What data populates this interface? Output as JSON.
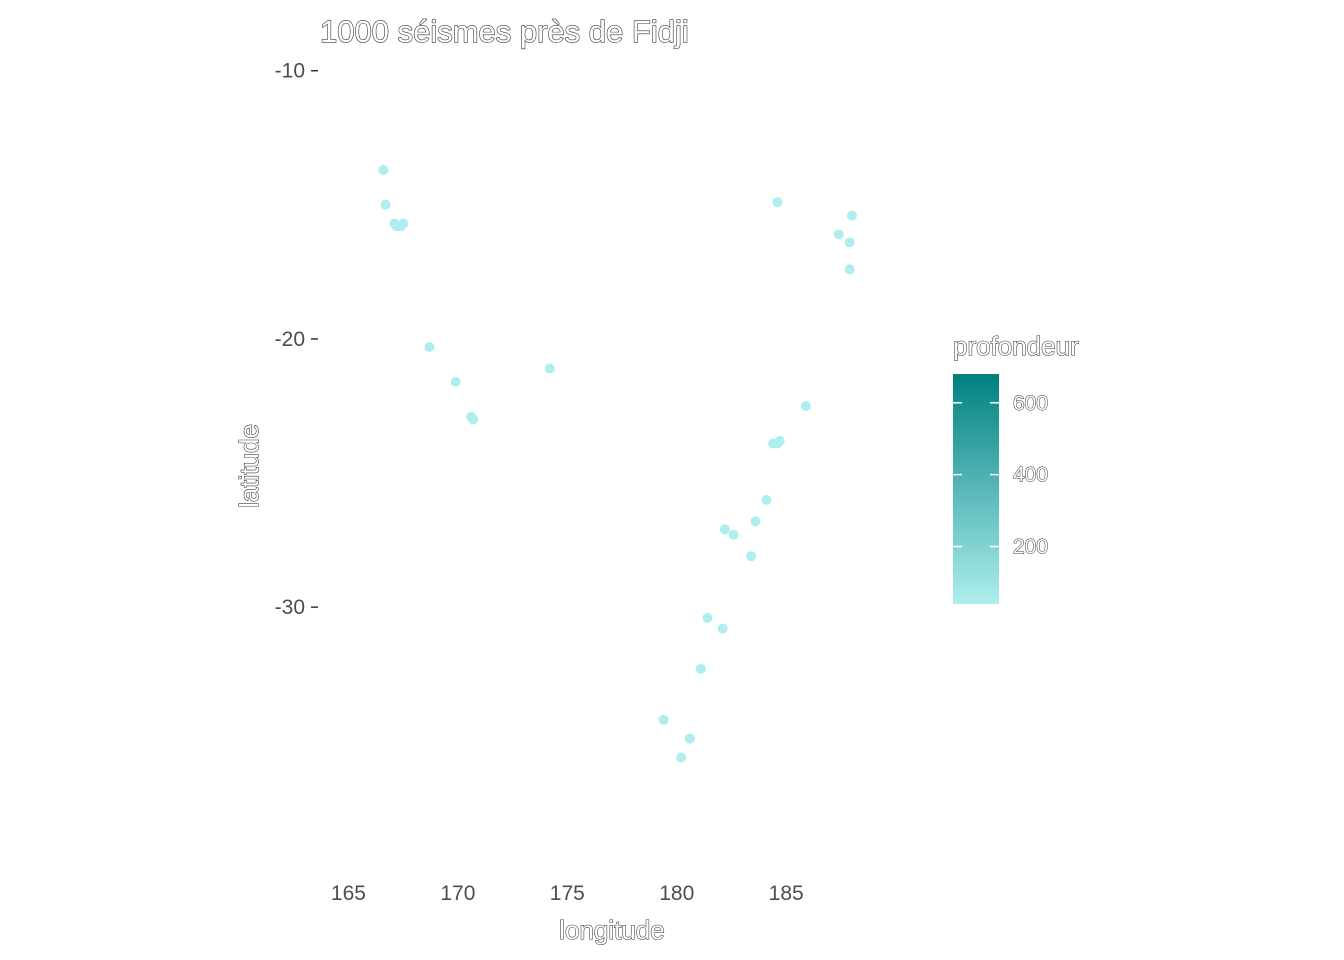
{
  "chart_data": {
    "type": "scatter",
    "title": "1000 séismes près de Fidji",
    "xlabel": "longitude",
    "ylabel": "latitude",
    "xlim": [
      163.7,
      190.2
    ],
    "ylim": [
      -39.8,
      -9.6
    ],
    "xticks": [
      "165",
      "170",
      "175",
      "180",
      "185"
    ],
    "xtick_values": [
      165,
      170,
      175,
      180,
      185
    ],
    "yticks": [
      "-10",
      "-20",
      "-30"
    ],
    "ytick_values": [
      -10,
      -20,
      -30
    ],
    "grid": false,
    "legend": {
      "title": "profondeur",
      "position": "right",
      "type": "colorbar",
      "range": [
        40,
        680
      ],
      "ticks": [
        "200",
        "400",
        "600"
      ],
      "tick_values": [
        200,
        400,
        600
      ],
      "color_low": "#aeeeee",
      "color_high": "#008080"
    },
    "point_color": "#aeeeee",
    "points": [
      {
        "x": 166.6,
        "y": -13.7
      },
      {
        "x": 166.7,
        "y": -15.0
      },
      {
        "x": 167.1,
        "y": -15.7
      },
      {
        "x": 167.2,
        "y": -15.8
      },
      {
        "x": 167.4,
        "y": -15.8
      },
      {
        "x": 167.5,
        "y": -15.7
      },
      {
        "x": 168.7,
        "y": -20.3
      },
      {
        "x": 169.9,
        "y": -21.6
      },
      {
        "x": 170.6,
        "y": -22.9
      },
      {
        "x": 170.7,
        "y": -23.0
      },
      {
        "x": 174.2,
        "y": -21.1
      },
      {
        "x": 179.4,
        "y": -34.2
      },
      {
        "x": 180.2,
        "y": -35.6
      },
      {
        "x": 180.6,
        "y": -34.9
      },
      {
        "x": 181.1,
        "y": -32.3
      },
      {
        "x": 181.4,
        "y": -30.4
      },
      {
        "x": 182.1,
        "y": -30.8
      },
      {
        "x": 182.2,
        "y": -27.1
      },
      {
        "x": 182.6,
        "y": -27.3
      },
      {
        "x": 183.4,
        "y": -28.1
      },
      {
        "x": 183.6,
        "y": -26.8
      },
      {
        "x": 184.1,
        "y": -26.0
      },
      {
        "x": 184.4,
        "y": -23.9
      },
      {
        "x": 184.6,
        "y": -23.9
      },
      {
        "x": 184.7,
        "y": -23.8
      },
      {
        "x": 184.6,
        "y": -14.9
      },
      {
        "x": 185.9,
        "y": -22.5
      },
      {
        "x": 187.4,
        "y": -16.1
      },
      {
        "x": 187.9,
        "y": -16.4
      },
      {
        "x": 187.9,
        "y": -17.4
      },
      {
        "x": 188.0,
        "y": -15.4
      }
    ]
  }
}
